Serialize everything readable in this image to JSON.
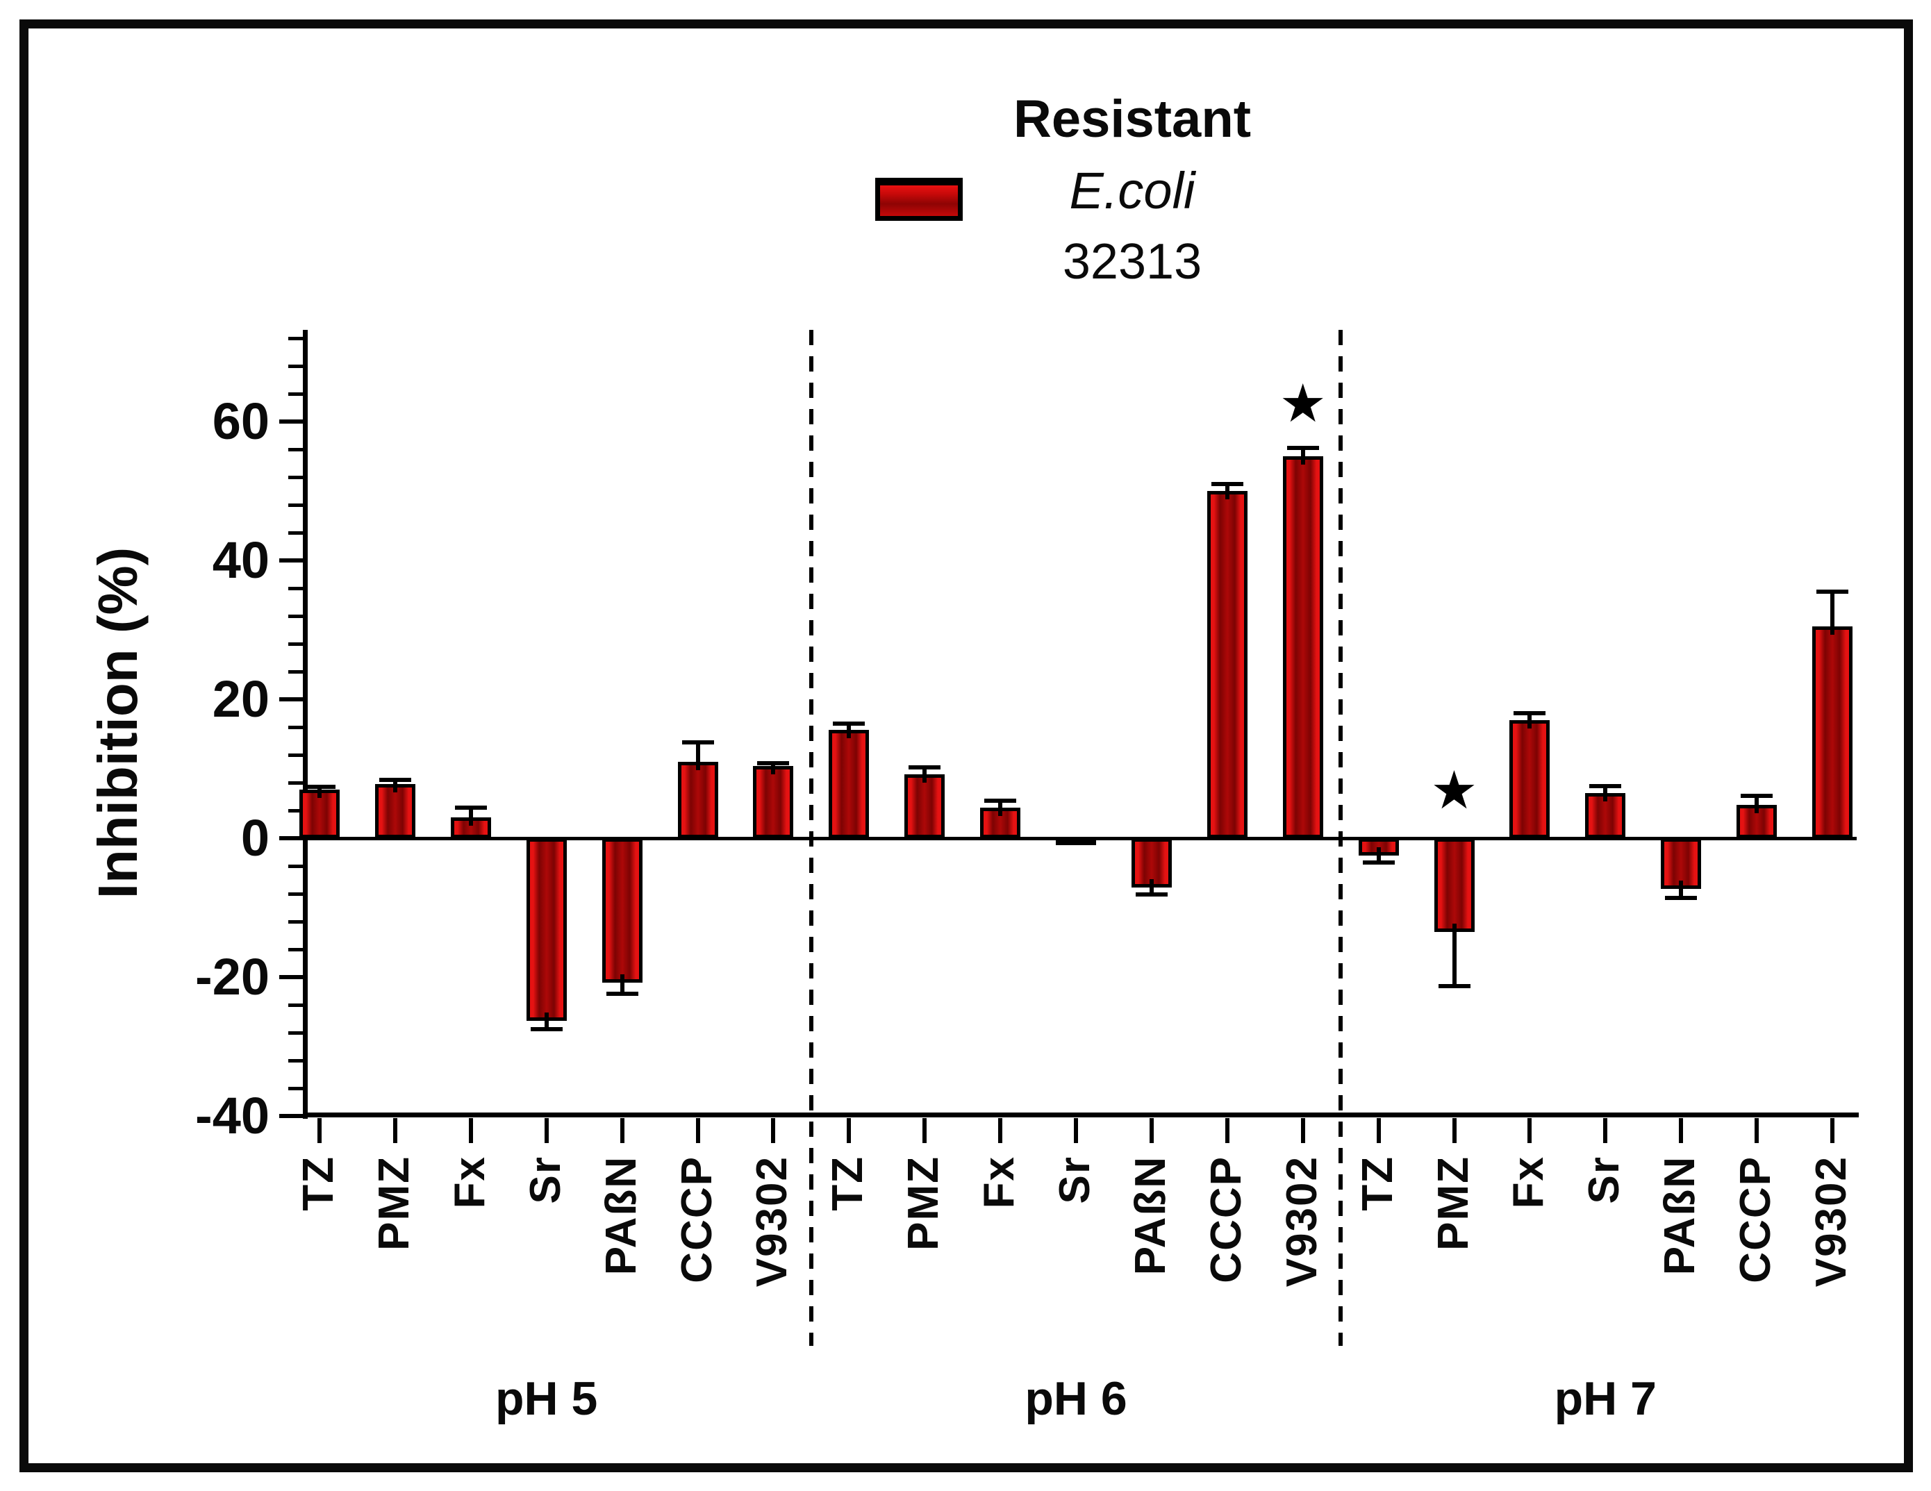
{
  "figure": {
    "background": "#ffffff",
    "border_color": "#0a0a0a"
  },
  "legend": {
    "title": "Resistant",
    "species": "E.coli",
    "strain": "32313",
    "swatch_color": "#c40909"
  },
  "y_axis": {
    "title": "Inhibition (%)",
    "major_tick_labels": [
      "60",
      "40",
      "20",
      "0",
      "-20",
      "-40"
    ]
  },
  "chart_data": {
    "type": "bar",
    "title": "Resistant E.coli 32313",
    "xlabel": "",
    "ylabel": "Inhibition (%)",
    "ylim": [
      -40,
      73
    ],
    "ytick_major_step": 20,
    "ytick_minor_step": 4,
    "grid": false,
    "legend_position": "top-center",
    "bar_color": "#bb0606",
    "bar_edge_color": "#000000",
    "categories": [
      "TZ",
      "PMZ",
      "Fx",
      "Sr",
      "PAßN",
      "CCCP",
      "V9302"
    ],
    "groups": [
      {
        "label": "pH 5",
        "values": [
          7.0,
          7.8,
          3.0,
          -26.3,
          -20.8,
          11.0,
          10.4
        ],
        "errors": [
          0.4,
          0.6,
          1.4,
          1.2,
          1.6,
          2.8,
          0.4
        ]
      },
      {
        "label": "pH 6",
        "values": [
          15.6,
          9.2,
          4.4,
          -0.3,
          -7.1,
          50.0,
          55.0
        ],
        "errors": [
          0.9,
          1.0,
          1.0,
          0,
          1.0,
          1.0,
          1.2
        ]
      },
      {
        "label": "pH 7",
        "values": [
          -2.5,
          -13.5,
          17.0,
          6.5,
          -7.3,
          4.8,
          30.5
        ],
        "errors": [
          1.0,
          7.8,
          1.0,
          1.0,
          1.3,
          1.3,
          5.0
        ]
      }
    ],
    "annotations": [
      {
        "group": 1,
        "category": "V9302",
        "symbol": "★",
        "y_value": 62.5
      },
      {
        "group": 2,
        "category": "PMZ",
        "symbol": "★",
        "y_value": 6.8
      }
    ]
  }
}
